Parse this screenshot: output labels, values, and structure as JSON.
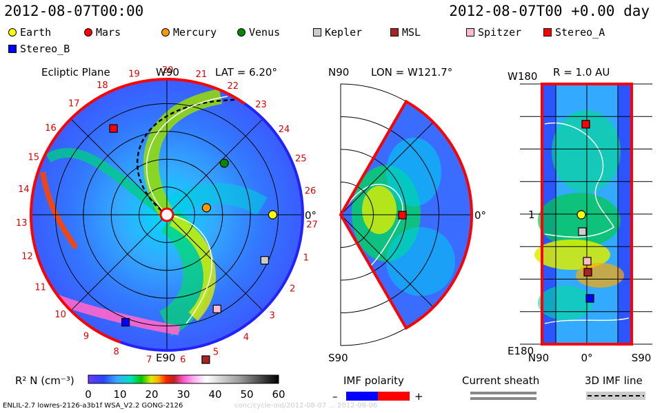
{
  "header": {
    "date_left": "2012-08-07T00:00",
    "date_right": "2012-08-07T00 +0.00 day"
  },
  "legend": [
    {
      "name": "Earth",
      "shape": "circle",
      "color": "#ffff00"
    },
    {
      "name": "Mars",
      "shape": "circle",
      "color": "#ff0000"
    },
    {
      "name": "Mercury",
      "shape": "circle",
      "color": "#ff9900"
    },
    {
      "name": "Venus",
      "shape": "circle",
      "color": "#008800"
    },
    {
      "name": "Kepler",
      "shape": "square",
      "color": "#cccccc"
    },
    {
      "name": "MSL",
      "shape": "square",
      "color": "#aa2222"
    },
    {
      "name": "Spitzer",
      "shape": "square",
      "color": "#ffbbcc"
    },
    {
      "name": "Stereo_A",
      "shape": "square",
      "color": "#ff0000"
    },
    {
      "name": "Stereo_B",
      "shape": "square",
      "color": "#0000ff"
    }
  ],
  "panels": {
    "ecliptic": {
      "title": "Ecliptic Plane",
      "lat_label": "LAT = 6.20°",
      "top_label": "W90",
      "bottom_label": "E90",
      "right_label": "0°",
      "sector_labels": [
        "19",
        "20",
        "21",
        "22",
        "23",
        "24",
        "25",
        "26",
        "27",
        "1",
        "2",
        "3",
        "4",
        "5",
        "6",
        "7",
        "8",
        "9",
        "10",
        "11",
        "12",
        "13",
        "14",
        "15",
        "16",
        "17",
        "18"
      ]
    },
    "meridional": {
      "lon_label": "LON = W121.7°",
      "top_label": "N90",
      "bottom_label": "S90",
      "right_label": "0°"
    },
    "map": {
      "r_label": "R = 1.0 AU",
      "top_left": "W180",
      "bottom_left": "E180",
      "mid_left": "1",
      "bottom_axis_left": "N90",
      "bottom_axis_mid": "0°",
      "bottom_axis_right": "S90"
    }
  },
  "colorbar": {
    "label": "R² N (cm⁻³)",
    "ticks": [
      "0",
      "10",
      "20",
      "30",
      "40",
      "50",
      "60"
    ],
    "min": 0,
    "max": 60
  },
  "imf": {
    "title": "IMF polarity",
    "minus": "–",
    "plus": "+",
    "minus_color": "#0000ff",
    "plus_color": "#ff0000"
  },
  "sheath": {
    "title": "Current sheath"
  },
  "imf3d": {
    "title": "3D IMF line"
  },
  "footer": {
    "text": "ENLIL-2.7 lowres-2126-a3b1f WSA_V2.2 GONG-2126",
    "faint": "conc/cycle-oid/2012-08-07 ... 2012-08-06"
  },
  "chart_data": {
    "type": "heatmap",
    "quantity": "R² N (cm⁻³)",
    "range": [
      0,
      60
    ],
    "panels": [
      "Ecliptic Plane",
      "LON = W121.7°",
      "R = 1.0 AU"
    ],
    "objects_ecliptic": [
      {
        "name": "Earth",
        "angle_deg": 0,
        "r_au": 1.0
      },
      {
        "name": "Venus",
        "angle_deg": 42,
        "r_au": 0.73
      },
      {
        "name": "Mercury",
        "angle_deg": 10,
        "r_au": 0.38
      },
      {
        "name": "Kepler",
        "angle_deg": -25,
        "r_au": 1.02
      },
      {
        "name": "Spitzer",
        "angle_deg": -62,
        "r_au": 1.01
      },
      {
        "name": "Stereo_A",
        "angle_deg": 121.7,
        "r_au": 0.96
      },
      {
        "name": "Stereo_B",
        "angle_deg": -111,
        "r_au": 1.09
      },
      {
        "name": "MSL",
        "angle_deg": -75,
        "r_au": 1.42
      }
    ]
  }
}
